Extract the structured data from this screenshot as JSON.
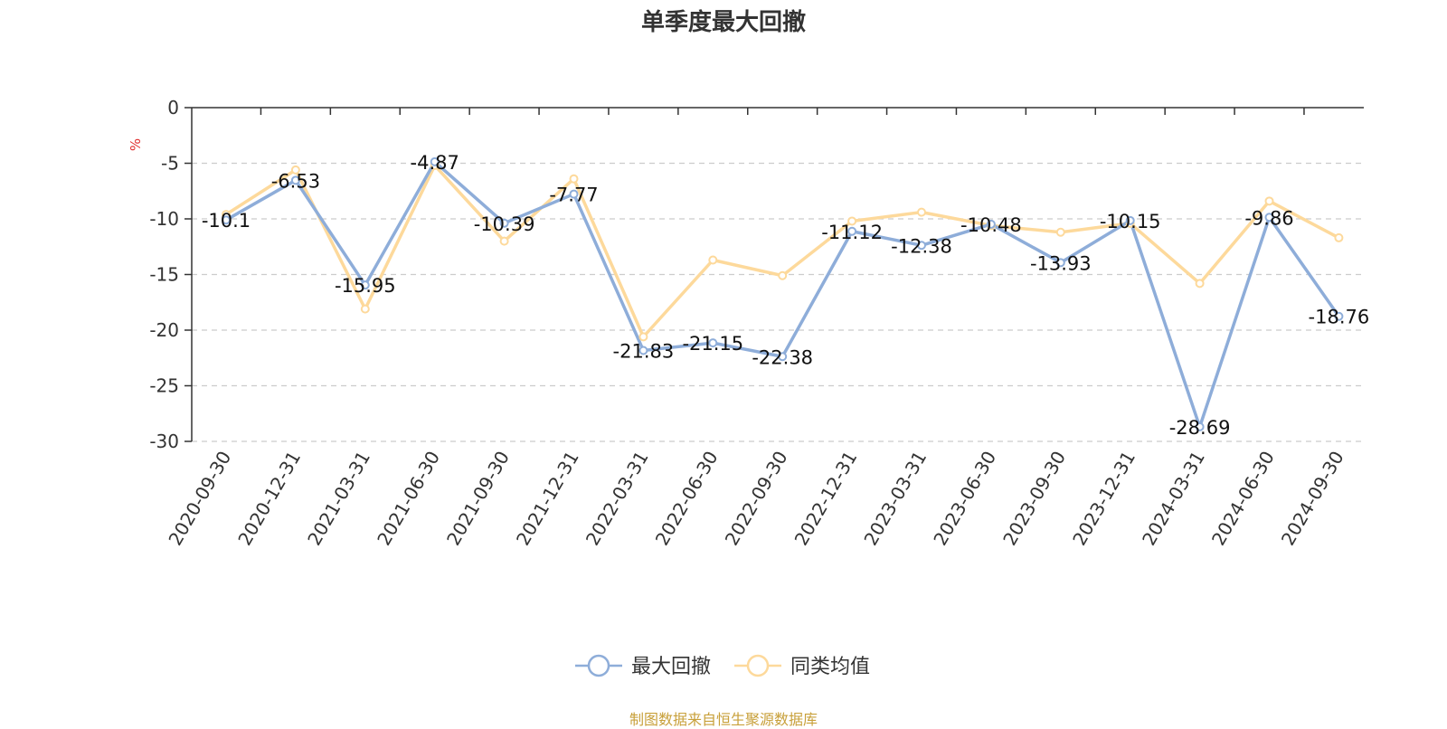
{
  "title": "单季度最大回撤",
  "source_note": "制图数据来自恒生聚源数据库",
  "unit_label": "%",
  "colors": {
    "series_1": "#8eadd9",
    "series_2": "#fdd99b",
    "unit": "#e03030",
    "grid": "#cccccc",
    "axis": "#333333"
  },
  "chart_data": {
    "type": "line",
    "title": "单季度最大回撤",
    "ylabel": "%",
    "xlabel": "",
    "ylim": [
      -30,
      0
    ],
    "yticks": [
      0,
      -5,
      -10,
      -15,
      -20,
      -25,
      -30
    ],
    "grid": "horizontal-dashed",
    "legend_position": "bottom-center",
    "categories": [
      "2020-09-30",
      "2020-12-31",
      "2021-03-31",
      "2021-06-30",
      "2021-09-30",
      "2021-12-31",
      "2022-03-31",
      "2022-06-30",
      "2022-09-30",
      "2022-12-31",
      "2023-03-31",
      "2023-06-30",
      "2023-09-30",
      "2023-12-31",
      "2024-03-31",
      "2024-06-30",
      "2024-09-30"
    ],
    "series": [
      {
        "name": "最大回撤",
        "values": [
          -10.1,
          -6.53,
          -15.95,
          -4.87,
          -10.39,
          -7.77,
          -21.83,
          -21.15,
          -22.38,
          -11.12,
          -12.38,
          -10.48,
          -13.93,
          -10.15,
          -28.69,
          -9.86,
          -18.76
        ],
        "data_labels": [
          "-10.1",
          "-6.53",
          "-15.95",
          "-4.87",
          "-10.39",
          "-7.77",
          "-21.83",
          "-21.15",
          "-22.38",
          "-11.12",
          "-12.38",
          "-10.48",
          "-13.93",
          "-10.15",
          "-28.69",
          "-9.86",
          "-18.76"
        ]
      },
      {
        "name": "同类均值",
        "values": [
          -9.6,
          -5.6,
          -18.1,
          -5.2,
          -12.0,
          -6.4,
          -20.6,
          -13.7,
          -15.1,
          -10.2,
          -9.4,
          -10.6,
          -11.2,
          -10.4,
          -15.8,
          -8.4,
          -11.7
        ]
      }
    ]
  }
}
